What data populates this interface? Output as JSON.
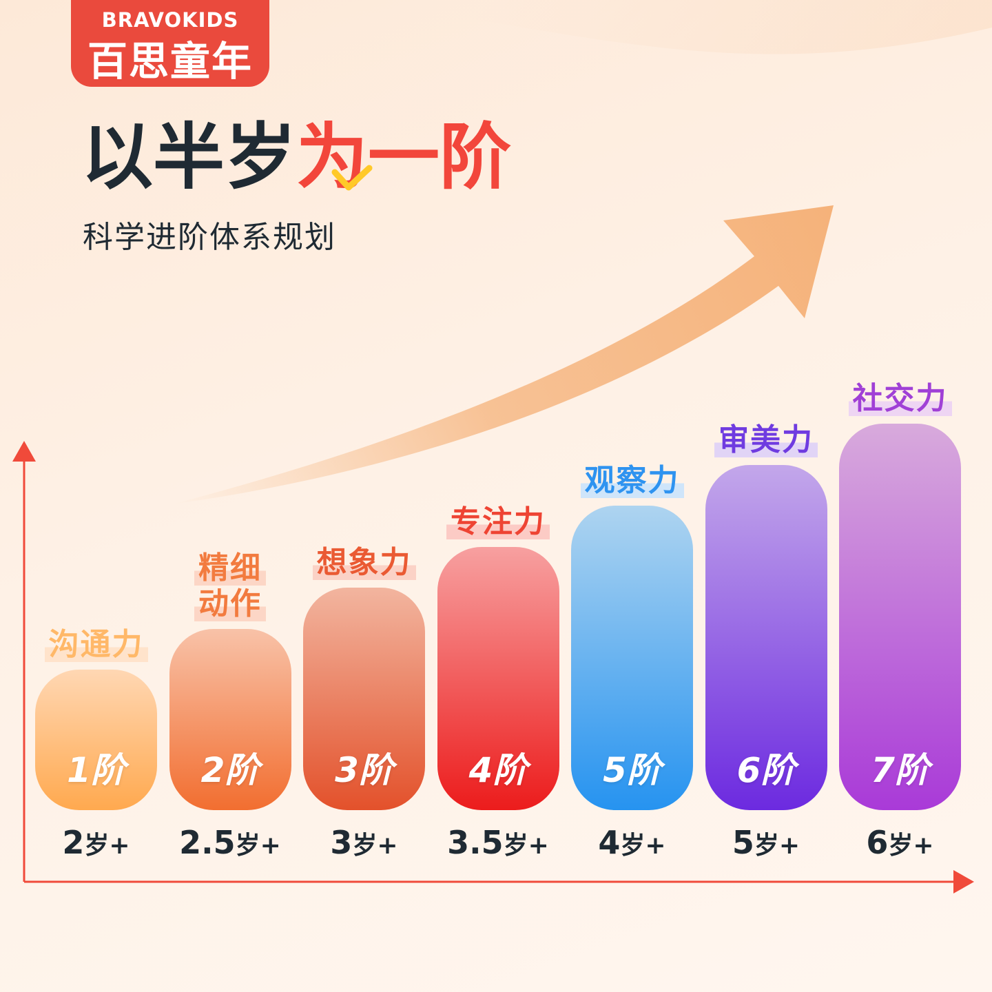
{
  "brand": {
    "name_en": "BRAVOKIDS",
    "name_cn": "百思童年",
    "accent": "#ea4a3d"
  },
  "headline": {
    "part1": "以半岁",
    "part2": "为一阶",
    "dark_color": "#1f2a33",
    "red_color": "#f2463b",
    "check_color": "#ffc929"
  },
  "subtitle": "科学进阶体系规划",
  "chart_data": {
    "type": "bar",
    "categories": [
      "2岁+",
      "2.5岁+",
      "3岁+",
      "3.5岁+",
      "4岁+",
      "5岁+",
      "6岁+"
    ],
    "values": [
      1,
      2,
      3,
      4,
      5,
      6,
      7
    ],
    "title": "",
    "xlabel": "",
    "ylabel": "",
    "grid": false,
    "stages": [
      "1阶",
      "2阶",
      "3阶",
      "4阶",
      "5阶",
      "6阶",
      "7阶"
    ],
    "abilities": [
      "沟通力",
      "精细\n动作",
      "想象力",
      "专注力",
      "观察力",
      "审美力",
      "社交力"
    ],
    "ages": [
      {
        "num": "2",
        "unit": "岁+"
      },
      {
        "num": "2.5",
        "unit": "岁+"
      },
      {
        "num": "3",
        "unit": "岁+"
      },
      {
        "num": "3.5",
        "unit": "岁+"
      },
      {
        "num": "4",
        "unit": "岁+"
      },
      {
        "num": "5",
        "unit": "岁+"
      },
      {
        "num": "6",
        "unit": "岁+"
      }
    ],
    "bar_colors": [
      [
        "#ffd7b3",
        "#ffa94f"
      ],
      [
        "#f8c2a8",
        "#f26e30"
      ],
      [
        "#f2b59f",
        "#e3512b"
      ],
      [
        "#f7a0a0",
        "#ec1c1c"
      ],
      [
        "#aed4f0",
        "#2693f0"
      ],
      [
        "#c3a7ea",
        "#6c2ae0"
      ],
      [
        "#d8aadc",
        "#a93ad8"
      ]
    ],
    "label_colors": [
      "#ffb868",
      "#f27b3f",
      "#ea5a33",
      "#ee4433",
      "#2e93f0",
      "#6f3be0",
      "#a040d6"
    ],
    "label_highlights": [
      "#ffe3cb",
      "#fcd6c6",
      "#fbd2c6",
      "#fccbc5",
      "#cfe5fa",
      "#e1d4f6",
      "#eed5f3"
    ],
    "axis_color": "#f04a3a",
    "trend_arrow_color": "#f5b27a"
  }
}
